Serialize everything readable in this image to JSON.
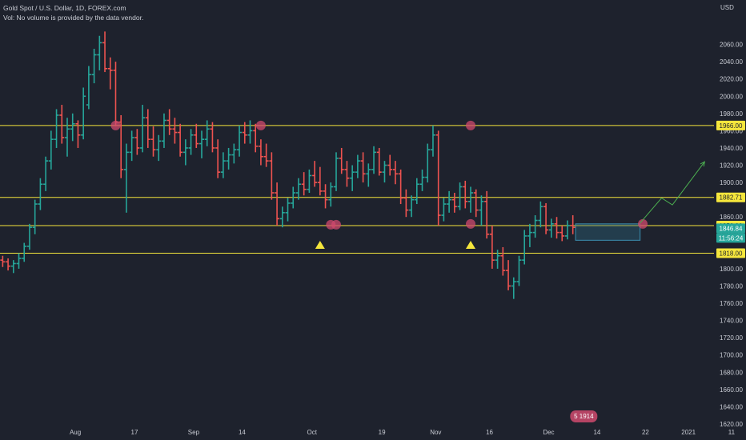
{
  "legend": {
    "title": "Gold Spot / U.S. Dollar, 1D, FOREX.com",
    "volume_note": "Vol: No volume is provided by the data vendor."
  },
  "axis_top": {
    "currency": "USD"
  },
  "colors": {
    "background": "#1e222d",
    "up": "#26a69a",
    "down": "#ef5350",
    "level_line": "#f5e63c",
    "marker_circle": "#d04a6e",
    "arrow": "#f5e63c",
    "projection": "#4caf50",
    "box": "#2f6f8a"
  },
  "chart_data": {
    "type": "ohlc",
    "symbol": "Gold Spot / U.S. Dollar",
    "interval": "1D",
    "ylim": [
      1620,
      2080
    ],
    "y_ticks": [
      1620,
      1640,
      1660,
      1680,
      1700,
      1720,
      1740,
      1760,
      1780,
      1800,
      1820,
      1840,
      1860,
      1880,
      1900,
      1920,
      1940,
      1960,
      1980,
      2000,
      2020,
      2040,
      2060
    ],
    "y_tick_labels": [
      "1620.00",
      "1640.00",
      "1660.00",
      "1680.00",
      "1700.00",
      "1720.00",
      "1740.00",
      "1760.00",
      "1780.00",
      "1800.00",
      "1820.00",
      "1840.00",
      "1860.00",
      "1880.00",
      "1900.00",
      "1920.00",
      "1940.00",
      "1960.00",
      "1980.00",
      "2000.00",
      "2020.00",
      "2040.00",
      "2060.00"
    ],
    "x_ticks": [
      {
        "label": "Aug",
        "day": 14
      },
      {
        "label": "17",
        "day": 25
      },
      {
        "label": "Sep",
        "day": 36
      },
      {
        "label": "14",
        "day": 45
      },
      {
        "label": "Oct",
        "day": 58
      },
      {
        "label": "19",
        "day": 71
      },
      {
        "label": "Nov",
        "day": 81
      },
      {
        "label": "16",
        "day": 91
      },
      {
        "label": "Dec",
        "day": 102
      },
      {
        "label": "14",
        "day": 111
      },
      {
        "label": "22",
        "day": 120
      },
      {
        "label": "2021",
        "day": 128
      },
      {
        "label": "11",
        "day": 136
      }
    ],
    "ohlc": [
      [
        1810,
        1815,
        1802,
        1808
      ],
      [
        1808,
        1812,
        1798,
        1803
      ],
      [
        1803,
        1810,
        1795,
        1806
      ],
      [
        1806,
        1818,
        1800,
        1812
      ],
      [
        1812,
        1830,
        1808,
        1826
      ],
      [
        1826,
        1852,
        1822,
        1848
      ],
      [
        1848,
        1880,
        1840,
        1875
      ],
      [
        1875,
        1905,
        1868,
        1898
      ],
      [
        1898,
        1930,
        1890,
        1925
      ],
      [
        1925,
        1960,
        1915,
        1950
      ],
      [
        1950,
        1985,
        1940,
        1978
      ],
      [
        1978,
        1990,
        1945,
        1952
      ],
      [
        1952,
        1975,
        1930,
        1962
      ],
      [
        1962,
        1980,
        1948,
        1968
      ],
      [
        1968,
        1972,
        1940,
        1955
      ],
      [
        1955,
        2010,
        1950,
        2000
      ],
      [
        1990,
        2035,
        1985,
        2025
      ],
      [
        2025,
        2055,
        2015,
        2048
      ],
      [
        2048,
        2070,
        2030,
        2062
      ],
      [
        2062,
        2075,
        2028,
        2032
      ],
      [
        2032,
        2045,
        2008,
        2030
      ],
      [
        2030,
        2040,
        1965,
        1970
      ],
      [
        1970,
        1978,
        1905,
        1915
      ],
      [
        1915,
        1945,
        1865,
        1935
      ],
      [
        1935,
        1960,
        1925,
        1952
      ],
      [
        1952,
        1962,
        1932,
        1940
      ],
      [
        1940,
        1990,
        1935,
        1975
      ],
      [
        1975,
        1985,
        1940,
        1950
      ],
      [
        1950,
        1965,
        1930,
        1938
      ],
      [
        1938,
        1955,
        1925,
        1948
      ],
      [
        1948,
        1980,
        1940,
        1972
      ],
      [
        1972,
        1985,
        1955,
        1962
      ],
      [
        1962,
        1975,
        1945,
        1958
      ],
      [
        1958,
        1968,
        1930,
        1935
      ],
      [
        1935,
        1950,
        1920,
        1940
      ],
      [
        1940,
        1962,
        1932,
        1955
      ],
      [
        1955,
        1968,
        1940,
        1945
      ],
      [
        1945,
        1960,
        1928,
        1950
      ],
      [
        1950,
        1972,
        1942,
        1962
      ],
      [
        1962,
        1970,
        1935,
        1940
      ],
      [
        1940,
        1950,
        1905,
        1912
      ],
      [
        1912,
        1935,
        1905,
        1925
      ],
      [
        1925,
        1940,
        1915,
        1932
      ],
      [
        1932,
        1945,
        1922,
        1938
      ],
      [
        1938,
        1966,
        1930,
        1958
      ],
      [
        1958,
        1970,
        1945,
        1955
      ],
      [
        1955,
        1972,
        1945,
        1960
      ],
      [
        1960,
        1968,
        1935,
        1942
      ],
      [
        1942,
        1950,
        1920,
        1930
      ],
      [
        1930,
        1945,
        1918,
        1925
      ],
      [
        1925,
        1935,
        1880,
        1888
      ],
      [
        1888,
        1900,
        1850,
        1858
      ],
      [
        1858,
        1872,
        1848,
        1865
      ],
      [
        1865,
        1882,
        1855,
        1876
      ],
      [
        1876,
        1895,
        1870,
        1888
      ],
      [
        1888,
        1905,
        1880,
        1898
      ],
      [
        1898,
        1912,
        1885,
        1892
      ],
      [
        1892,
        1915,
        1888,
        1908
      ],
      [
        1908,
        1925,
        1895,
        1900
      ],
      [
        1900,
        1918,
        1885,
        1890
      ],
      [
        1890,
        1898,
        1870,
        1880
      ],
      [
        1880,
        1900,
        1872,
        1895
      ],
      [
        1895,
        1935,
        1890,
        1928
      ],
      [
        1928,
        1940,
        1910,
        1915
      ],
      [
        1915,
        1925,
        1895,
        1905
      ],
      [
        1905,
        1920,
        1890,
        1912
      ],
      [
        1912,
        1932,
        1905,
        1925
      ],
      [
        1925,
        1935,
        1900,
        1910
      ],
      [
        1910,
        1922,
        1895,
        1915
      ],
      [
        1915,
        1942,
        1910,
        1935
      ],
      [
        1935,
        1940,
        1908,
        1912
      ],
      [
        1912,
        1925,
        1900,
        1920
      ],
      [
        1920,
        1932,
        1908,
        1915
      ],
      [
        1915,
        1925,
        1898,
        1910
      ],
      [
        1910,
        1915,
        1875,
        1882
      ],
      [
        1882,
        1892,
        1860,
        1868
      ],
      [
        1868,
        1885,
        1860,
        1880
      ],
      [
        1880,
        1905,
        1875,
        1898
      ],
      [
        1898,
        1915,
        1890,
        1906
      ],
      [
        1906,
        1945,
        1900,
        1938
      ],
      [
        1938,
        1966,
        1930,
        1955
      ],
      [
        1955,
        1960,
        1850,
        1862
      ],
      [
        1862,
        1882,
        1855,
        1875
      ],
      [
        1875,
        1890,
        1865,
        1880
      ],
      [
        1880,
        1888,
        1865,
        1872
      ],
      [
        1872,
        1900,
        1868,
        1895
      ],
      [
        1895,
        1902,
        1870,
        1878
      ],
      [
        1878,
        1895,
        1865,
        1888
      ],
      [
        1888,
        1892,
        1860,
        1868
      ],
      [
        1868,
        1885,
        1850,
        1878
      ],
      [
        1878,
        1890,
        1835,
        1840
      ],
      [
        1840,
        1850,
        1800,
        1810
      ],
      [
        1810,
        1822,
        1800,
        1815
      ],
      [
        1815,
        1825,
        1792,
        1798
      ],
      [
        1798,
        1810,
        1775,
        1780
      ],
      [
        1780,
        1790,
        1765,
        1785
      ],
      [
        1785,
        1815,
        1780,
        1810
      ],
      [
        1810,
        1845,
        1805,
        1838
      ],
      [
        1838,
        1852,
        1825,
        1842
      ],
      [
        1842,
        1862,
        1836,
        1856
      ],
      [
        1856,
        1878,
        1848,
        1872
      ],
      [
        1872,
        1876,
        1840,
        1845
      ],
      [
        1845,
        1858,
        1836,
        1852
      ],
      [
        1852,
        1860,
        1835,
        1842
      ],
      [
        1842,
        1850,
        1832,
        1838
      ],
      [
        1838,
        1856,
        1834,
        1850
      ],
      [
        1850,
        1862,
        1840,
        1848
      ]
    ],
    "levels": [
      1966.0,
      1882.71,
      1850.0,
      1818.0
    ],
    "level_labels": [
      "1966.00",
      "1882.71",
      "1850.00",
      "1818.00"
    ],
    "current_price": 1846.84,
    "current_price_label": "1846.84",
    "countdown": "11:56:24",
    "markers_circle": [
      {
        "day": 21,
        "price": 1966
      },
      {
        "day": 48,
        "price": 1966
      },
      {
        "day": 61,
        "price": 1851
      },
      {
        "day": 62,
        "price": 1851
      },
      {
        "day": 87,
        "price": 1966
      },
      {
        "day": 87,
        "price": 1852
      },
      {
        "day": 119,
        "price": 1852
      }
    ],
    "markers_arrow": [
      {
        "day": 59,
        "price": 1838
      },
      {
        "day": 87,
        "price": 1838
      }
    ],
    "consolidation_box": {
      "day_start": 107,
      "day_end": 119,
      "price_top": 1852,
      "price_bottom": 1833
    },
    "projection": [
      {
        "day": 119,
        "price": 1853
      },
      {
        "day": 123,
        "price": 1882
      },
      {
        "day": 125,
        "price": 1874
      },
      {
        "day": 131,
        "price": 1924
      }
    ],
    "session_badge": "5 1914"
  }
}
